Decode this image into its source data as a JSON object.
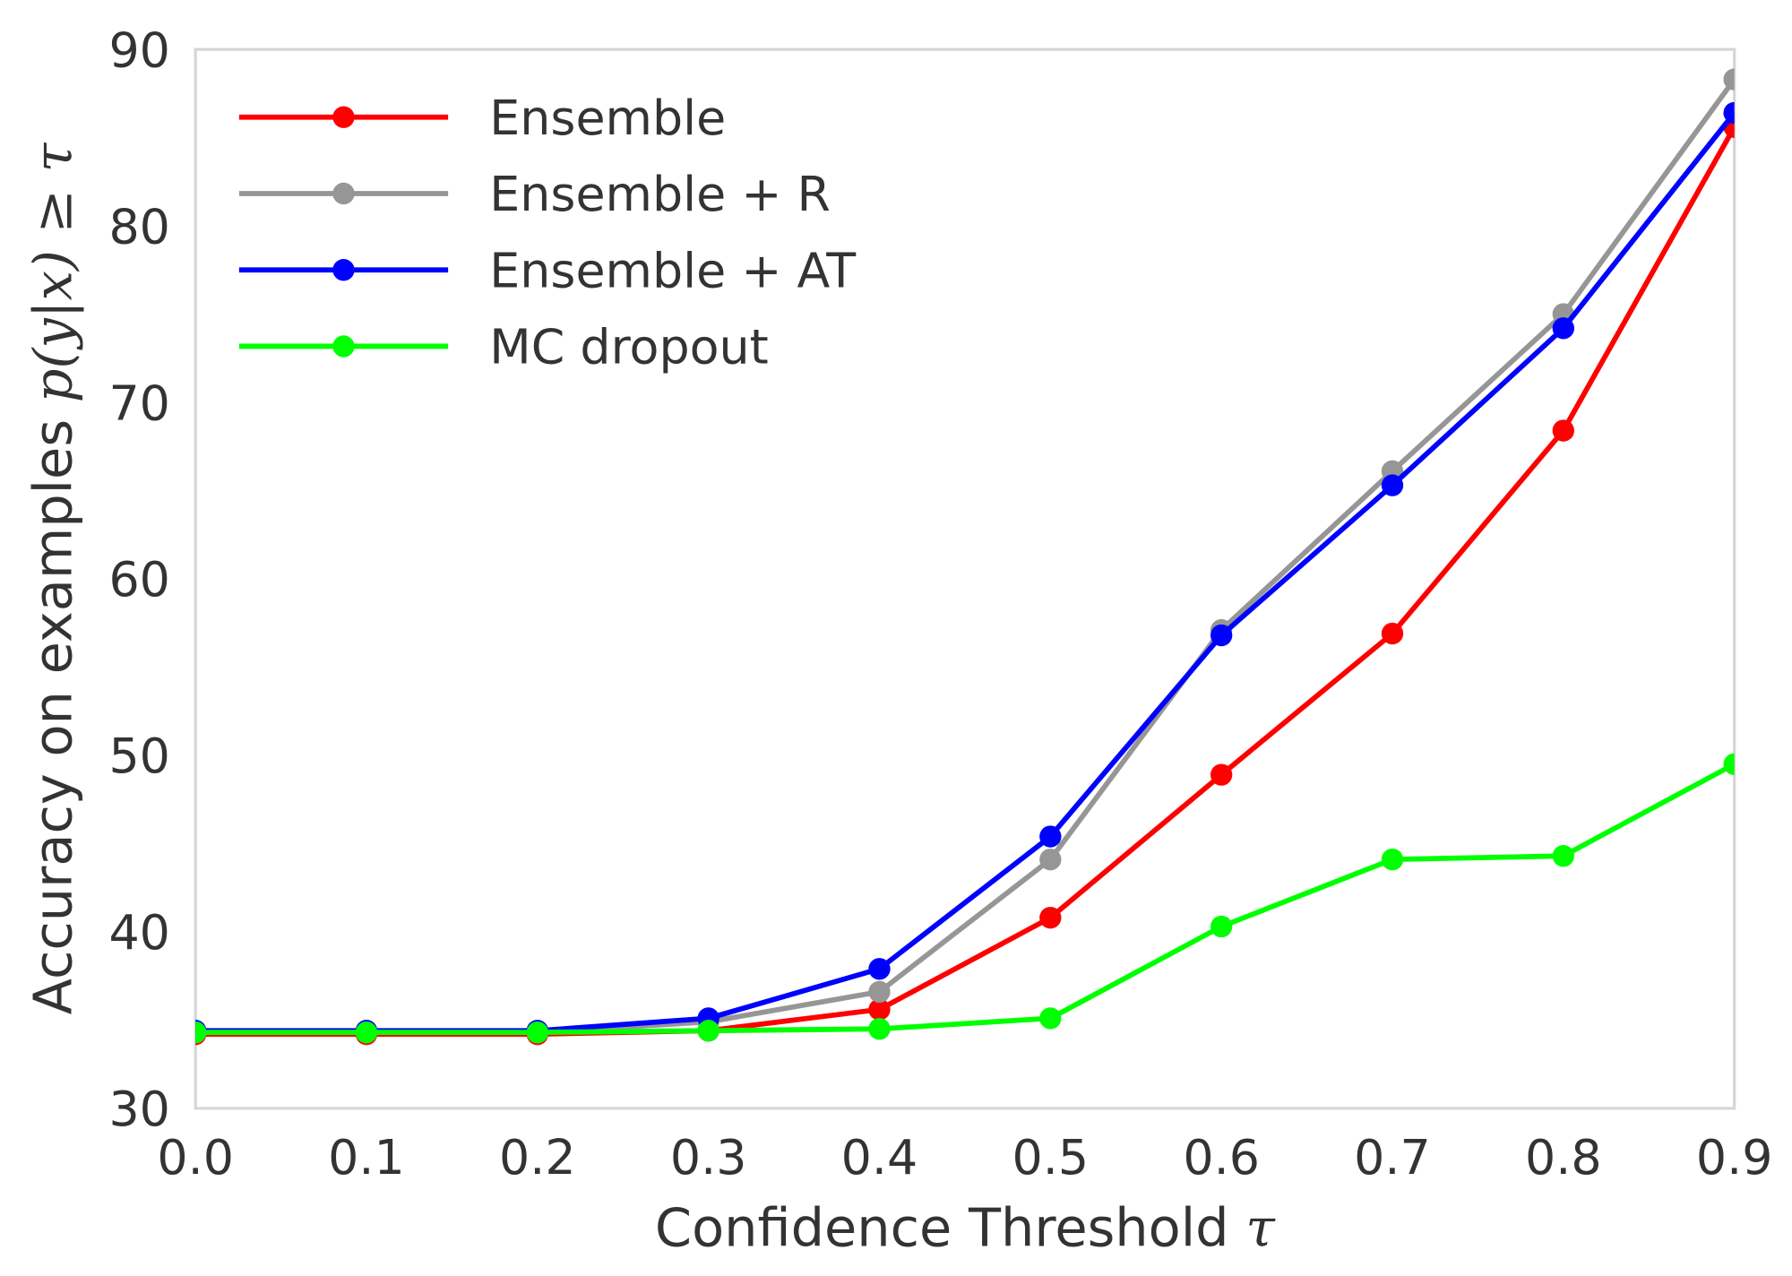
{
  "chart_data": {
    "type": "line",
    "xlabel": "Confidence Threshold",
    "xlabel_math": "τ",
    "ylabel": "Accuracy on examples",
    "ylabel_math": "p(y|x) ≥ τ",
    "xlim": [
      0.0,
      0.9
    ],
    "ylim": [
      30,
      90
    ],
    "x_ticks": [
      "0.0",
      "0.1",
      "0.2",
      "0.3",
      "0.4",
      "0.5",
      "0.6",
      "0.7",
      "0.8",
      "0.9"
    ],
    "y_ticks": [
      "30",
      "40",
      "50",
      "60",
      "70",
      "80",
      "90"
    ],
    "grid": false,
    "legend_position": "top-left",
    "x": [
      0.0,
      0.1,
      0.2,
      0.3,
      0.4,
      0.5,
      0.6,
      0.7,
      0.8,
      0.9
    ],
    "series": [
      {
        "name": "Ensemble",
        "color": "#ff0000",
        "values": [
          34.2,
          34.2,
          34.2,
          34.4,
          35.6,
          40.8,
          48.9,
          56.9,
          68.4,
          85.6
        ]
      },
      {
        "name": "Ensemble + R",
        "color": "#969696",
        "values": [
          34.3,
          34.3,
          34.3,
          34.9,
          36.6,
          44.1,
          57.1,
          66.1,
          75.0,
          88.3
        ]
      },
      {
        "name": "Ensemble + AT",
        "color": "#0000ff",
        "values": [
          34.4,
          34.4,
          34.4,
          35.1,
          37.9,
          45.4,
          56.8,
          65.3,
          74.2,
          86.4
        ]
      },
      {
        "name": "MC dropout",
        "color": "#00ff00",
        "values": [
          34.3,
          34.3,
          34.3,
          34.4,
          34.5,
          35.1,
          40.3,
          44.1,
          44.3,
          49.5
        ]
      }
    ]
  }
}
